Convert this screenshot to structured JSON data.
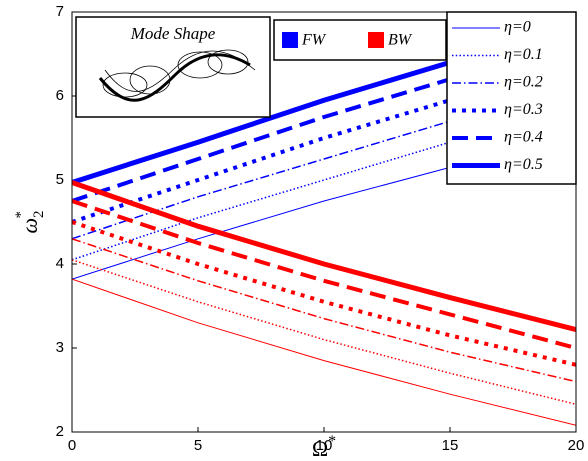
{
  "chart_data": {
    "type": "line",
    "inset_title": "Mode Shape",
    "xlabel": "Ω",
    "xlabel_sup": "*",
    "ylabel": "ω",
    "ylabel_sub": "2",
    "ylabel_sup": "*",
    "x": [
      0,
      5,
      10,
      15,
      20
    ],
    "xlim": [
      0,
      20
    ],
    "xticks": [
      0,
      5,
      10,
      15,
      20
    ],
    "ylim": [
      2,
      7
    ],
    "yticks": [
      2,
      3,
      4,
      5,
      6,
      7
    ],
    "groups": [
      {
        "name": "FW",
        "color": "#0000ff",
        "series": [
          {
            "name": "η=0",
            "linestyle": "-",
            "linewidth": 1,
            "values": [
              3.82,
              4.3,
              4.75,
              5.15,
              5.5
            ]
          },
          {
            "name": "η=0.1",
            "linestyle": ":",
            "linewidth": 1.5,
            "values": [
              4.05,
              4.55,
              5.0,
              5.45,
              5.85
            ]
          },
          {
            "name": "η=0.2",
            "linestyle": "-.",
            "linewidth": 1.5,
            "values": [
              4.3,
              4.8,
              5.25,
              5.7,
              6.1
            ]
          },
          {
            "name": "η=0.3",
            "linestyle": ":",
            "linewidth": 4,
            "values": [
              4.5,
              5.0,
              5.5,
              5.95,
              6.35
            ]
          },
          {
            "name": "η=0.4",
            "linestyle": "--",
            "linewidth": 4,
            "values": [
              4.75,
              5.25,
              5.75,
              6.2,
              6.6
            ]
          },
          {
            "name": "η=0.5",
            "linestyle": "-",
            "linewidth": 5,
            "values": [
              4.97,
              5.45,
              5.95,
              6.4,
              6.8
            ]
          }
        ]
      },
      {
        "name": "BW",
        "color": "#ff0000",
        "series": [
          {
            "name": "η=0",
            "linestyle": "-",
            "linewidth": 1,
            "values": [
              3.82,
              3.3,
              2.85,
              2.45,
              2.08
            ]
          },
          {
            "name": "η=0.1",
            "linestyle": ":",
            "linewidth": 1.5,
            "values": [
              4.05,
              3.55,
              3.1,
              2.7,
              2.33
            ]
          },
          {
            "name": "η=0.2",
            "linestyle": "-.",
            "linewidth": 1.5,
            "values": [
              4.3,
              3.8,
              3.35,
              2.95,
              2.6
            ]
          },
          {
            "name": "η=0.3",
            "linestyle": ":",
            "linewidth": 4,
            "values": [
              4.5,
              4.0,
              3.55,
              3.15,
              2.8
            ]
          },
          {
            "name": "η=0.4",
            "linestyle": "--",
            "linewidth": 4,
            "values": [
              4.75,
              4.25,
              3.8,
              3.4,
              3.0
            ]
          },
          {
            "name": "η=0.5",
            "linestyle": "-",
            "linewidth": 5,
            "values": [
              4.97,
              4.45,
              4.0,
              3.6,
              3.22
            ]
          }
        ]
      }
    ]
  }
}
